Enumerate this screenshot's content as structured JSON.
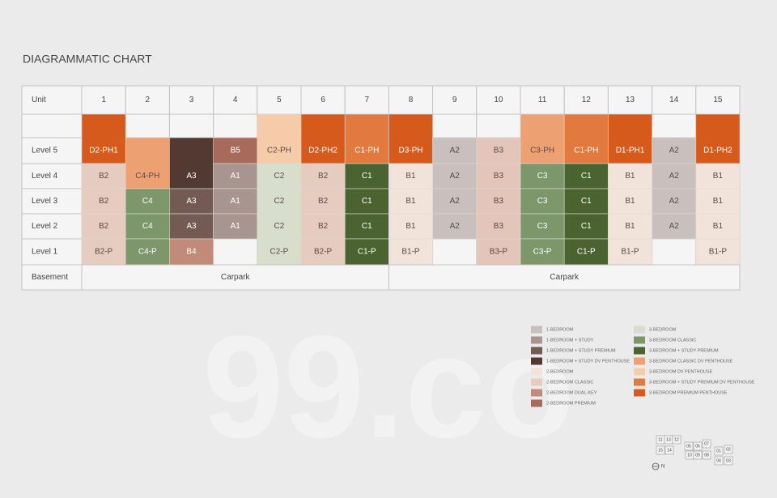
{
  "title": "DIAGRAMMATIC CHART",
  "watermark": "99.co",
  "table": {
    "unit_header": "Unit",
    "units": [
      "1",
      "2",
      "3",
      "4",
      "5",
      "6",
      "7",
      "8",
      "9",
      "10",
      "11",
      "12",
      "13",
      "14",
      "15"
    ],
    "rows": [
      {
        "label": "Level 5",
        "cells": [
          {
            "label": "D2-PH1",
            "color": "#d65a1c"
          },
          null,
          null,
          {
            "label": "B5",
            "color": "#a86b5b"
          },
          {
            "label": "C2-PH",
            "color": "#f6cba9"
          },
          {
            "label": "D2-PH2",
            "color": "#d65a1c"
          },
          {
            "label": "C1-PH",
            "color": "#e27a3f"
          },
          {
            "label": "D3-PH",
            "color": "#d65a1c"
          },
          {
            "label": "A2",
            "color": "#c9bfbc"
          },
          {
            "label": "B3",
            "color": "#e3c6b9"
          },
          {
            "label": "C3-PH",
            "color": "#eda172"
          },
          {
            "label": "C1-PH",
            "color": "#e27a3f"
          },
          {
            "label": "D1-PH1",
            "color": "#d65a1c"
          },
          {
            "label": "A2",
            "color": "#c9bfbc"
          },
          {
            "label": "D1-PH2",
            "color": "#d65a1c"
          }
        ]
      },
      {
        "label": "Level 4",
        "cells": [
          {
            "label": "B2",
            "color": "#e6cbbf"
          },
          {
            "label": "C4-PH",
            "color": "#eda172"
          },
          {
            "label": "A3",
            "color": "#523a33"
          },
          {
            "label": "A1",
            "color": "#a8958f"
          },
          {
            "label": "C2",
            "color": "#d7dfcc"
          },
          {
            "label": "B2",
            "color": "#e6cbbf"
          },
          {
            "label": "C1",
            "color": "#4a6330"
          },
          {
            "label": "B1",
            "color": "#f1e3da"
          },
          {
            "label": "A2",
            "color": "#c9bfbc"
          },
          {
            "label": "B3",
            "color": "#e3c6b9"
          },
          {
            "label": "C3",
            "color": "#7d966a"
          },
          {
            "label": "C1",
            "color": "#4a6330"
          },
          {
            "label": "B1",
            "color": "#f1e3da"
          },
          {
            "label": "A2",
            "color": "#c9bfbc"
          },
          {
            "label": "B1",
            "color": "#f1e3da"
          }
        ]
      },
      {
        "label": "Level 3",
        "cells": [
          {
            "label": "B2",
            "color": "#e6cbbf"
          },
          {
            "label": "C4",
            "color": "#7d966a"
          },
          {
            "label": "A3",
            "color": "#735b53"
          },
          {
            "label": "A1",
            "color": "#a8958f"
          },
          {
            "label": "C2",
            "color": "#d7dfcc"
          },
          {
            "label": "B2",
            "color": "#e6cbbf"
          },
          {
            "label": "C1",
            "color": "#4a6330"
          },
          {
            "label": "B1",
            "color": "#f1e3da"
          },
          {
            "label": "A2",
            "color": "#c9bfbc"
          },
          {
            "label": "B3",
            "color": "#e3c6b9"
          },
          {
            "label": "C3",
            "color": "#7d966a"
          },
          {
            "label": "C1",
            "color": "#4a6330"
          },
          {
            "label": "B1",
            "color": "#f1e3da"
          },
          {
            "label": "A2",
            "color": "#c9bfbc"
          },
          {
            "label": "B1",
            "color": "#f1e3da"
          }
        ]
      },
      {
        "label": "Level 2",
        "cells": [
          {
            "label": "B2",
            "color": "#e6cbbf"
          },
          {
            "label": "C4",
            "color": "#7d966a"
          },
          {
            "label": "A3",
            "color": "#735b53"
          },
          {
            "label": "A1",
            "color": "#a8958f"
          },
          {
            "label": "C2",
            "color": "#d7dfcc"
          },
          {
            "label": "B2",
            "color": "#e6cbbf"
          },
          {
            "label": "C1",
            "color": "#4a6330"
          },
          {
            "label": "B1",
            "color": "#f1e3da"
          },
          {
            "label": "A2",
            "color": "#c9bfbc"
          },
          {
            "label": "B3",
            "color": "#e3c6b9"
          },
          {
            "label": "C3",
            "color": "#7d966a"
          },
          {
            "label": "C1",
            "color": "#4a6330"
          },
          {
            "label": "B1",
            "color": "#f1e3da"
          },
          {
            "label": "A2",
            "color": "#c9bfbc"
          },
          {
            "label": "B1",
            "color": "#f1e3da"
          }
        ]
      },
      {
        "label": "Level 1",
        "cells": [
          {
            "label": "B2-P",
            "color": "#e6cbbf"
          },
          {
            "label": "C4-P",
            "color": "#7d966a"
          },
          {
            "label": "B4",
            "color": "#c08b78"
          },
          null,
          {
            "label": "C2-P",
            "color": "#d7dfcc"
          },
          {
            "label": "B2-P",
            "color": "#e6cbbf"
          },
          {
            "label": "C1-P",
            "color": "#4a6330"
          },
          {
            "label": "B1-P",
            "color": "#f1e3da"
          },
          null,
          {
            "label": "B3-P",
            "color": "#e3c6b9"
          },
          {
            "label": "C3-P",
            "color": "#7d966a"
          },
          {
            "label": "C1-P",
            "color": "#4a6330"
          },
          {
            "label": "B1-P",
            "color": "#f1e3da"
          },
          null,
          {
            "label": "B1-P",
            "color": "#f1e3da"
          }
        ]
      }
    ],
    "basement": {
      "label": "Basement",
      "cells": [
        "Carpark",
        "Carpark"
      ]
    }
  },
  "legend": [
    {
      "label": "1-BEDROOM",
      "color": "#c9bfbc"
    },
    {
      "label": "1-BEDROOM + STUDY",
      "color": "#a8958f"
    },
    {
      "label": "1-BEDROOM + STUDY PREMIUM",
      "color": "#735b53"
    },
    {
      "label": "1-BEDROOM + STUDY DV PENTHOUSE",
      "color": "#523a33"
    },
    {
      "label": "2-BEDROOM",
      "color": "#f1e3da"
    },
    {
      "label": "2-BEDROOM CLASSIC",
      "color": "#e6cbbf"
    },
    {
      "label": "2-BEDROOM DUAL-KEY",
      "color": "#c08b78"
    },
    {
      "label": "2-BEDROOM PREMIUM",
      "color": "#a86b5b"
    },
    {
      "label": "3-BEDROOM",
      "color": "#d7dfcc"
    },
    {
      "label": "3-BEDROOM CLASSIC",
      "color": "#7d966a"
    },
    {
      "label": "3-BEDROOM + STUDY PREMIUM",
      "color": "#4a6330"
    },
    {
      "label": "3-BEDROOM CLASSIC DV PENTHOUSE",
      "color": "#eda172"
    },
    {
      "label": "3-BEDROOM DV PENTHOUSE",
      "color": "#f6cba9"
    },
    {
      "label": "3-BEDROOM + STUDY PREMIUM DV PENTHOUSE",
      "color": "#e27a3f"
    },
    {
      "label": "3-BEDROOM PREMIUM PENTHOUSE",
      "color": "#d65a1c"
    }
  ],
  "site_plan": {
    "units": [
      "11",
      "13",
      "12",
      "15",
      "14",
      "07",
      "05",
      "06",
      "10",
      "09",
      "08",
      "01",
      "02",
      "04",
      "03"
    ],
    "north": "N"
  }
}
